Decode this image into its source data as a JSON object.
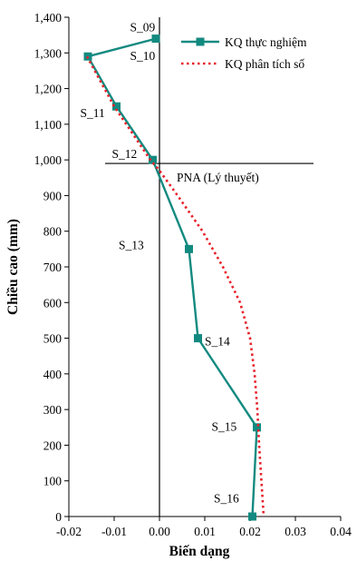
{
  "chart_data": {
    "type": "line",
    "xlabel": "Biến dạng",
    "ylabel": "Chiều cao (mm)",
    "xlim": [
      -0.02,
      0.04
    ],
    "ylim": [
      0,
      1400
    ],
    "xticks": [
      "-0.02",
      "-0.01",
      "0.00",
      "0.01",
      "0.02",
      "0.03",
      "0.04"
    ],
    "xtick_values": [
      -0.02,
      -0.01,
      0.0,
      0.01,
      0.02,
      0.03,
      0.04
    ],
    "yticks": [
      "0",
      "100",
      "200",
      "300",
      "400",
      "500",
      "600",
      "700",
      "800",
      "900",
      "1,000",
      "1,100",
      "1,200",
      "1,300",
      "1,400"
    ],
    "ytick_values": [
      0,
      100,
      200,
      300,
      400,
      500,
      600,
      700,
      800,
      900,
      1000,
      1100,
      1200,
      1300,
      1400
    ],
    "grid": false,
    "legend_position": "top-right",
    "series": [
      {
        "name": "KQ thực nghiệm",
        "style": "solid-with-square-markers",
        "color": "#138a80",
        "points": [
          {
            "x": -0.0008,
            "y": 1340
          },
          {
            "x": -0.0158,
            "y": 1290
          },
          {
            "x": -0.0095,
            "y": 1150
          },
          {
            "x": -0.0015,
            "y": 1000
          },
          {
            "x": 0.0065,
            "y": 750
          },
          {
            "x": 0.0085,
            "y": 500
          },
          {
            "x": 0.0215,
            "y": 250
          },
          {
            "x": 0.0205,
            "y": 0
          }
        ]
      },
      {
        "name": "KQ phân tích số",
        "style": "dotted",
        "color": "#e8202a",
        "points": [
          {
            "x": -0.016,
            "y": 1290
          },
          {
            "x": -0.01,
            "y": 1150
          },
          {
            "x": -0.002,
            "y": 1000
          },
          {
            "x": 0.0,
            "y": 970
          },
          {
            "x": 0.004,
            "y": 900
          },
          {
            "x": 0.0095,
            "y": 800
          },
          {
            "x": 0.014,
            "y": 700
          },
          {
            "x": 0.0178,
            "y": 600
          },
          {
            "x": 0.02,
            "y": 500
          },
          {
            "x": 0.021,
            "y": 400
          },
          {
            "x": 0.0216,
            "y": 300
          },
          {
            "x": 0.022,
            "y": 200
          },
          {
            "x": 0.0225,
            "y": 100
          },
          {
            "x": 0.023,
            "y": 0
          }
        ]
      }
    ],
    "gauge_labels": [
      {
        "text": "S_09",
        "x": -0.0065,
        "y": 1360
      },
      {
        "text": "S_10",
        "x": -0.0065,
        "y": 1280
      },
      {
        "text": "S_11",
        "x": -0.0175,
        "y": 1120
      },
      {
        "text": "S_12",
        "x": -0.0105,
        "y": 1005
      },
      {
        "text": "S_13",
        "x": -0.009,
        "y": 750
      },
      {
        "text": "S_14",
        "x": 0.01,
        "y": 480
      },
      {
        "text": "S_15",
        "x": 0.0115,
        "y": 240
      },
      {
        "text": "S_16",
        "x": 0.012,
        "y": 40
      }
    ],
    "reference_line": {
      "label": "PNA (Lý thuyết)",
      "y": 990,
      "x_from": -0.012,
      "x_to": 0.034
    }
  }
}
